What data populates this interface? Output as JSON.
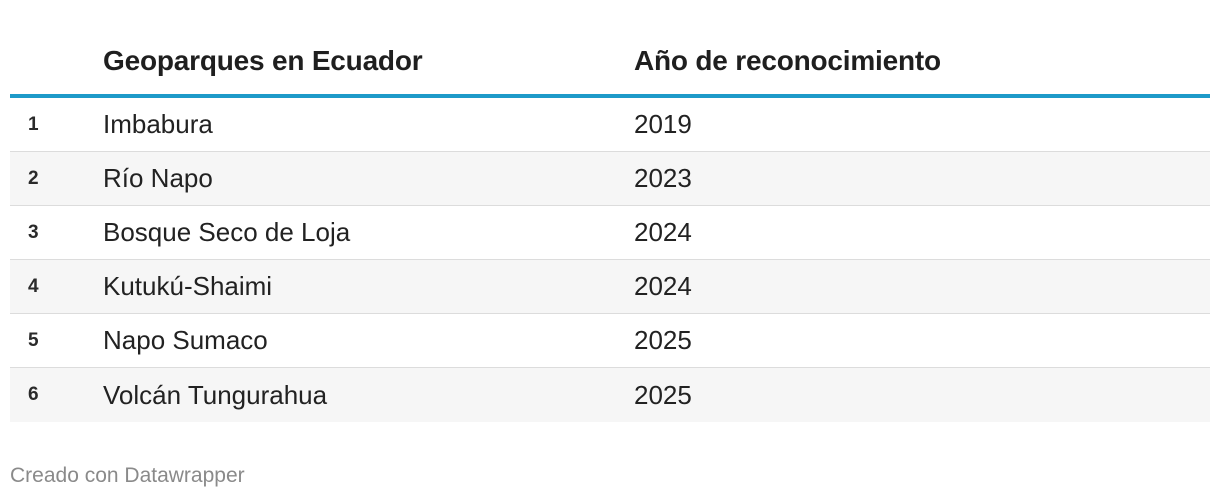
{
  "chart_data": {
    "type": "table",
    "columns": [
      "",
      "Geoparques en Ecuador",
      "Año de reconocimiento"
    ],
    "rows": [
      {
        "rank": "1",
        "name": "Imbabura",
        "year": "2019"
      },
      {
        "rank": "2",
        "name": "Río Napo",
        "year": "2023"
      },
      {
        "rank": "3",
        "name": "Bosque Seco de Loja",
        "year": "2024"
      },
      {
        "rank": "4",
        "name": "Kutukú-Shaimi",
        "year": "2024"
      },
      {
        "rank": "5",
        "name": "Napo Sumaco",
        "year": "2025"
      },
      {
        "rank": "6",
        "name": "Volcán Tungurahua",
        "year": "2025"
      }
    ]
  },
  "footer": {
    "credit": "Creado con Datawrapper"
  },
  "colors": {
    "header_rule": "#1d9ac9",
    "alt_row": "#f6f6f6",
    "footer_text": "#8a8a8a"
  }
}
